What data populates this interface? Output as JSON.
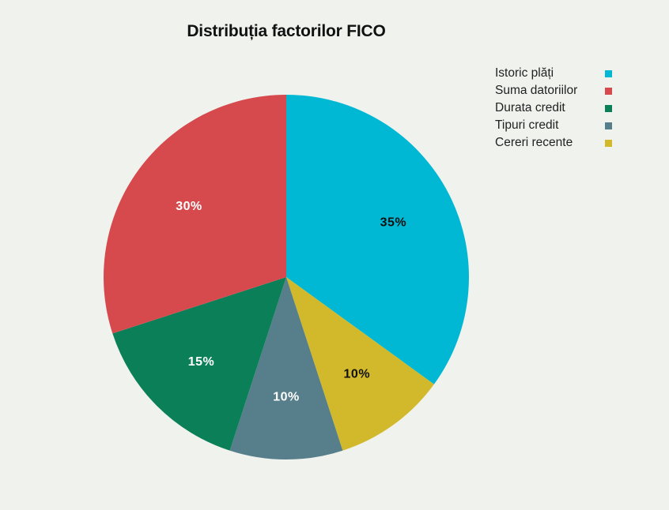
{
  "chart_data": {
    "type": "pie",
    "title": "Distribuția factorilor FICO",
    "categories": [
      "Istoric plăți",
      "Suma datoriilor",
      "Durata credit",
      "Tipuri credit",
      "Cereri recente"
    ],
    "values": [
      35,
      30,
      15,
      10,
      10
    ],
    "labels": [
      "35%",
      "30%",
      "15%",
      "10%",
      "10%"
    ],
    "colors": [
      "#00b8d4",
      "#d64a4e",
      "#0b8058",
      "#577f8b",
      "#d1b92b"
    ],
    "label_colors": [
      "#111111",
      "#ffffff",
      "#ffffff",
      "#ffffff",
      "#111111"
    ],
    "legend_position": "top-right"
  }
}
